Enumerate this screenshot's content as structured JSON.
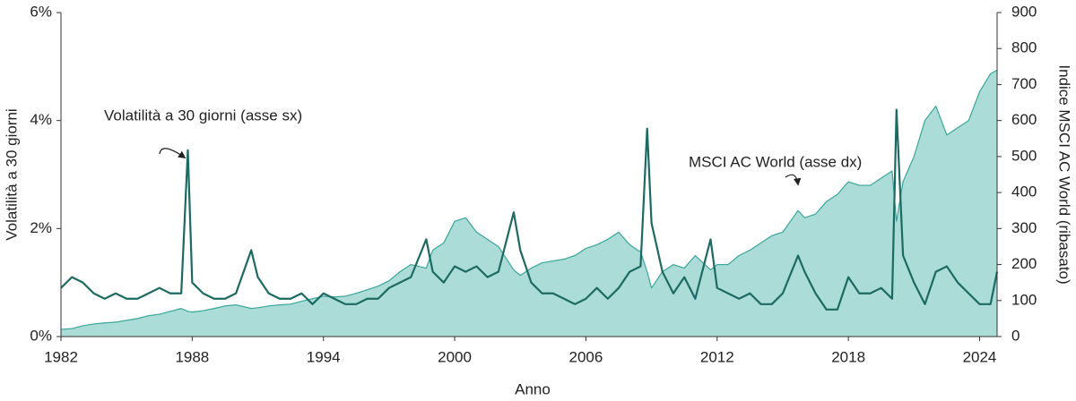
{
  "chart_data": {
    "type": "line",
    "x_label": "Anno",
    "y_label": "Volatilità a 30 giorni",
    "y2_label": "Indice MSCI AC World (ribasato)",
    "xlim": [
      1982,
      2024.8
    ],
    "xticks": [
      1982,
      1988,
      1994,
      2000,
      2006,
      2012,
      2018,
      2024
    ],
    "ylim": [
      0,
      6
    ],
    "yticks": [
      {
        "value": 0,
        "label": "0%"
      },
      {
        "value": 2,
        "label": "2%"
      },
      {
        "value": 4,
        "label": "4%"
      },
      {
        "value": 6,
        "label": "6%"
      }
    ],
    "y2lim": [
      0,
      900
    ],
    "y2ticks": [
      0,
      100,
      200,
      300,
      400,
      500,
      600,
      700,
      800,
      900
    ],
    "x": [
      1982,
      1982.5,
      1983,
      1983.5,
      1984,
      1984.5,
      1985,
      1985.5,
      1986,
      1986.5,
      1987,
      1987.5,
      1987.8,
      1988,
      1988.5,
      1989,
      1989.5,
      1990,
      1990.7,
      1991,
      1991.5,
      1992,
      1992.5,
      1993,
      1993.5,
      1994,
      1994.5,
      1995,
      1995.5,
      1996,
      1996.5,
      1997,
      1997.5,
      1998,
      1998.7,
      1999,
      1999.5,
      2000,
      2000.5,
      2001,
      2001.5,
      2002,
      2002.7,
      2003,
      2003.5,
      2004,
      2004.5,
      2005,
      2005.5,
      2006,
      2006.5,
      2007,
      2007.5,
      2008,
      2008.5,
      2008.8,
      2009,
      2009.5,
      2010,
      2010.5,
      2011,
      2011.7,
      2012,
      2012.5,
      2013,
      2013.5,
      2014,
      2014.5,
      2015,
      2015.7,
      2016,
      2016.5,
      2017,
      2017.5,
      2018,
      2018.5,
      2019,
      2019.5,
      2020,
      2020.2,
      2020.5,
      2021,
      2021.5,
      2022,
      2022.5,
      2023,
      2023.5,
      2024,
      2024.5,
      2024.8
    ],
    "series": [
      {
        "name": "MSCI AC World (asse dx)",
        "axis": "y2",
        "color": "#3aa69a",
        "fill": "#abdcd7",
        "values": [
          20,
          22,
          30,
          35,
          38,
          40,
          45,
          50,
          58,
          62,
          70,
          78,
          70,
          68,
          72,
          78,
          85,
          88,
          78,
          80,
          85,
          88,
          90,
          98,
          105,
          112,
          110,
          112,
          120,
          130,
          140,
          155,
          180,
          200,
          190,
          240,
          260,
          320,
          330,
          290,
          270,
          250,
          185,
          170,
          190,
          205,
          210,
          215,
          225,
          245,
          255,
          270,
          290,
          255,
          235,
          180,
          135,
          180,
          200,
          190,
          225,
          185,
          200,
          200,
          225,
          240,
          260,
          280,
          290,
          350,
          330,
          340,
          375,
          395,
          430,
          420,
          420,
          440,
          460,
          320,
          430,
          500,
          600,
          640,
          560,
          580,
          600,
          680,
          730,
          740
        ]
      },
      {
        "name": "Volatilità a 30 giorni (asse sx)",
        "color": "#1d6a62",
        "values": [
          0.9,
          1.1,
          1.0,
          0.8,
          0.7,
          0.8,
          0.7,
          0.7,
          0.8,
          0.9,
          0.8,
          0.8,
          3.45,
          1.0,
          0.8,
          0.7,
          0.7,
          0.8,
          1.6,
          1.1,
          0.8,
          0.7,
          0.7,
          0.8,
          0.6,
          0.8,
          0.7,
          0.6,
          0.6,
          0.7,
          0.7,
          0.9,
          1.0,
          1.1,
          1.8,
          1.2,
          1.0,
          1.3,
          1.2,
          1.3,
          1.1,
          1.2,
          2.3,
          1.6,
          1.0,
          0.8,
          0.8,
          0.7,
          0.6,
          0.7,
          0.9,
          0.7,
          0.9,
          1.2,
          1.3,
          3.85,
          2.1,
          1.2,
          0.8,
          1.1,
          0.7,
          1.8,
          0.9,
          0.8,
          0.7,
          0.8,
          0.6,
          0.6,
          0.8,
          1.5,
          1.2,
          0.8,
          0.5,
          0.5,
          1.1,
          0.8,
          0.8,
          0.9,
          0.7,
          4.2,
          1.5,
          1.0,
          0.6,
          1.2,
          1.3,
          1.0,
          0.8,
          0.6,
          0.6,
          1.2
        ]
      }
    ]
  }
}
